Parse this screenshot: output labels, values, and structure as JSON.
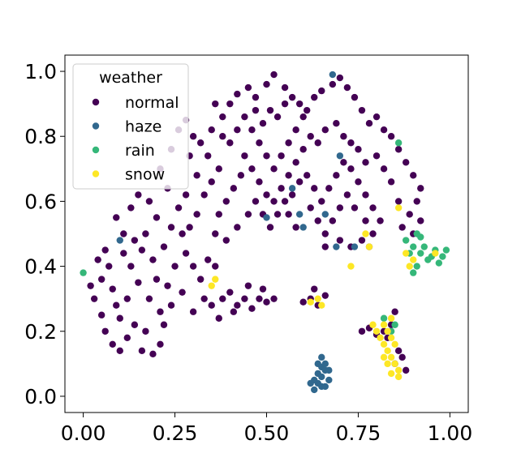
{
  "chart_data": {
    "type": "scatter",
    "xlim": [
      -0.05,
      1.05
    ],
    "ylim": [
      -0.05,
      1.05
    ],
    "xticks": [
      0.0,
      0.25,
      0.5,
      0.75,
      1.0
    ],
    "yticks": [
      0.0,
      0.2,
      0.4,
      0.6,
      0.8,
      1.0
    ],
    "xtick_labels": [
      "0.00",
      "0.25",
      "0.50",
      "0.75",
      "1.00"
    ],
    "ytick_labels": [
      "0.0",
      "0.2",
      "0.4",
      "0.6",
      "0.8",
      "1.0"
    ],
    "grid": false,
    "legend": {
      "title": "weather",
      "placement": "top-left",
      "entries": [
        "normal",
        "haze",
        "rain",
        "snow"
      ]
    },
    "colors": {
      "normal": "#440154",
      "haze": "#31688e",
      "rain": "#35b779",
      "snow": "#fde725"
    },
    "series": [
      {
        "name": "normal",
        "points": [
          [
            0.02,
            0.34
          ],
          [
            0.03,
            0.3
          ],
          [
            0.05,
            0.25
          ],
          [
            0.06,
            0.2
          ],
          [
            0.05,
            0.36
          ],
          [
            0.07,
            0.4
          ],
          [
            0.08,
            0.33
          ],
          [
            0.09,
            0.28
          ],
          [
            0.04,
            0.42
          ],
          [
            0.06,
            0.45
          ],
          [
            0.08,
            0.16
          ],
          [
            0.1,
            0.14
          ],
          [
            0.12,
            0.18
          ],
          [
            0.14,
            0.22
          ],
          [
            0.1,
            0.24
          ],
          [
            0.12,
            0.3
          ],
          [
            0.15,
            0.35
          ],
          [
            0.13,
            0.4
          ],
          [
            0.16,
            0.45
          ],
          [
            0.11,
            0.5
          ],
          [
            0.09,
            0.55
          ],
          [
            0.13,
            0.58
          ],
          [
            0.15,
            0.62
          ],
          [
            0.18,
            0.6
          ],
          [
            0.2,
            0.55
          ],
          [
            0.17,
            0.5
          ],
          [
            0.19,
            0.42
          ],
          [
            0.18,
            0.3
          ],
          [
            0.17,
            0.2
          ],
          [
            0.16,
            0.14
          ],
          [
            0.19,
            0.13
          ],
          [
            0.21,
            0.16
          ],
          [
            0.22,
            0.22
          ],
          [
            0.24,
            0.28
          ],
          [
            0.23,
            0.34
          ],
          [
            0.25,
            0.4
          ],
          [
            0.22,
            0.46
          ],
          [
            0.24,
            0.52
          ],
          [
            0.26,
            0.58
          ],
          [
            0.23,
            0.64
          ],
          [
            0.21,
            0.7
          ],
          [
            0.24,
            0.76
          ],
          [
            0.26,
            0.82
          ],
          [
            0.28,
            0.85
          ],
          [
            0.3,
            0.8
          ],
          [
            0.29,
            0.74
          ],
          [
            0.31,
            0.68
          ],
          [
            0.28,
            0.62
          ],
          [
            0.27,
            0.5
          ],
          [
            0.28,
            0.44
          ],
          [
            0.3,
            0.4
          ],
          [
            0.32,
            0.36
          ],
          [
            0.34,
            0.42
          ],
          [
            0.36,
            0.4
          ],
          [
            0.33,
            0.3
          ],
          [
            0.3,
            0.26
          ],
          [
            0.27,
            0.32
          ],
          [
            0.35,
            0.28
          ],
          [
            0.37,
            0.24
          ],
          [
            0.38,
            0.3
          ],
          [
            0.4,
            0.32
          ],
          [
            0.42,
            0.28
          ],
          [
            0.44,
            0.3
          ],
          [
            0.46,
            0.27
          ],
          [
            0.48,
            0.3
          ],
          [
            0.5,
            0.29
          ],
          [
            0.52,
            0.3
          ],
          [
            0.49,
            0.33
          ],
          [
            0.45,
            0.34
          ],
          [
            0.41,
            0.26
          ],
          [
            0.33,
            0.62
          ],
          [
            0.35,
            0.66
          ],
          [
            0.37,
            0.7
          ],
          [
            0.34,
            0.74
          ],
          [
            0.32,
            0.78
          ],
          [
            0.35,
            0.82
          ],
          [
            0.38,
            0.86
          ],
          [
            0.4,
            0.9
          ],
          [
            0.42,
            0.93
          ],
          [
            0.45,
            0.95
          ],
          [
            0.47,
            0.92
          ],
          [
            0.5,
            0.96
          ],
          [
            0.52,
            0.99
          ],
          [
            0.55,
            0.95
          ],
          [
            0.57,
            0.92
          ],
          [
            0.59,
            0.9
          ],
          [
            0.61,
            0.88
          ],
          [
            0.63,
            0.92
          ],
          [
            0.65,
            0.94
          ],
          [
            0.68,
            0.96
          ],
          [
            0.7,
            0.98
          ],
          [
            0.72,
            0.95
          ],
          [
            0.74,
            0.92
          ],
          [
            0.76,
            0.88
          ],
          [
            0.78,
            0.84
          ],
          [
            0.8,
            0.86
          ],
          [
            0.82,
            0.82
          ],
          [
            0.84,
            0.8
          ],
          [
            0.86,
            0.76
          ],
          [
            0.88,
            0.72
          ],
          [
            0.9,
            0.68
          ],
          [
            0.92,
            0.64
          ],
          [
            0.91,
            0.6
          ],
          [
            0.89,
            0.56
          ],
          [
            0.87,
            0.52
          ],
          [
            0.9,
            0.5
          ],
          [
            0.92,
            0.54
          ],
          [
            0.86,
            0.6
          ],
          [
            0.84,
            0.66
          ],
          [
            0.82,
            0.7
          ],
          [
            0.8,
            0.74
          ],
          [
            0.77,
            0.72
          ],
          [
            0.75,
            0.76
          ],
          [
            0.73,
            0.78
          ],
          [
            0.71,
            0.8
          ],
          [
            0.69,
            0.84
          ],
          [
            0.66,
            0.82
          ],
          [
            0.64,
            0.78
          ],
          [
            0.62,
            0.8
          ],
          [
            0.6,
            0.76
          ],
          [
            0.58,
            0.72
          ],
          [
            0.56,
            0.68
          ],
          [
            0.54,
            0.64
          ],
          [
            0.52,
            0.6
          ],
          [
            0.5,
            0.62
          ],
          [
            0.48,
            0.66
          ],
          [
            0.46,
            0.7
          ],
          [
            0.44,
            0.74
          ],
          [
            0.43,
            0.68
          ],
          [
            0.41,
            0.64
          ],
          [
            0.39,
            0.6
          ],
          [
            0.37,
            0.56
          ],
          [
            0.36,
            0.5
          ],
          [
            0.39,
            0.48
          ],
          [
            0.42,
            0.52
          ],
          [
            0.45,
            0.56
          ],
          [
            0.47,
            0.6
          ],
          [
            0.49,
            0.56
          ],
          [
            0.51,
            0.52
          ],
          [
            0.53,
            0.56
          ],
          [
            0.55,
            0.6
          ],
          [
            0.57,
            0.62
          ],
          [
            0.59,
            0.66
          ],
          [
            0.61,
            0.68
          ],
          [
            0.63,
            0.64
          ],
          [
            0.65,
            0.6
          ],
          [
            0.67,
            0.64
          ],
          [
            0.69,
            0.68
          ],
          [
            0.71,
            0.72
          ],
          [
            0.73,
            0.7
          ],
          [
            0.75,
            0.66
          ],
          [
            0.77,
            0.62
          ],
          [
            0.79,
            0.58
          ],
          [
            0.81,
            0.54
          ],
          [
            0.79,
            0.5
          ],
          [
            0.77,
            0.54
          ],
          [
            0.74,
            0.58
          ],
          [
            0.72,
            0.62
          ],
          [
            0.7,
            0.58
          ],
          [
            0.68,
            0.54
          ],
          [
            0.66,
            0.5
          ],
          [
            0.64,
            0.54
          ],
          [
            0.62,
            0.58
          ],
          [
            0.66,
            0.46
          ],
          [
            0.7,
            0.48
          ],
          [
            0.73,
            0.46
          ],
          [
            0.76,
            0.48
          ],
          [
            0.78,
            0.46
          ],
          [
            0.58,
            0.52
          ],
          [
            0.56,
            0.56
          ],
          [
            0.4,
            0.78
          ],
          [
            0.42,
            0.82
          ],
          [
            0.44,
            0.86
          ],
          [
            0.46,
            0.82
          ],
          [
            0.48,
            0.78
          ],
          [
            0.5,
            0.74
          ],
          [
            0.52,
            0.7
          ],
          [
            0.54,
            0.74
          ],
          [
            0.56,
            0.78
          ],
          [
            0.58,
            0.82
          ],
          [
            0.6,
            0.86
          ],
          [
            0.53,
            0.86
          ],
          [
            0.55,
            0.9
          ],
          [
            0.51,
            0.88
          ],
          [
            0.49,
            0.84
          ],
          [
            0.47,
            0.88
          ],
          [
            0.36,
            0.9
          ],
          [
            0.38,
            0.8
          ],
          [
            0.31,
            0.56
          ],
          [
            0.29,
            0.52
          ],
          [
            0.62,
            0.3
          ],
          [
            0.64,
            0.28
          ],
          [
            0.66,
            0.31
          ],
          [
            0.63,
            0.33
          ],
          [
            0.6,
            0.29
          ],
          [
            0.85,
            0.26
          ],
          [
            0.84,
            0.22
          ],
          [
            0.83,
            0.18
          ],
          [
            0.86,
            0.14
          ],
          [
            0.85,
            0.1
          ],
          [
            0.88,
            0.08
          ],
          [
            0.82,
            0.2
          ],
          [
            0.8,
            0.19
          ],
          [
            0.78,
            0.21
          ],
          [
            0.76,
            0.2
          ],
          [
            0.87,
            0.12
          ],
          [
            0.11,
            0.44
          ],
          [
            0.14,
            0.48
          ],
          [
            0.2,
            0.36
          ],
          [
            0.21,
            0.26
          ]
        ]
      },
      {
        "name": "haze",
        "points": [
          [
            0.63,
            0.02
          ],
          [
            0.64,
            0.04
          ],
          [
            0.65,
            0.06
          ],
          [
            0.66,
            0.03
          ],
          [
            0.64,
            0.07
          ],
          [
            0.65,
            0.09
          ],
          [
            0.66,
            0.08
          ],
          [
            0.67,
            0.05
          ],
          [
            0.63,
            0.05
          ],
          [
            0.65,
            0.03
          ],
          [
            0.64,
            0.1
          ],
          [
            0.66,
            0.1
          ],
          [
            0.62,
            0.04
          ],
          [
            0.67,
            0.08
          ],
          [
            0.65,
            0.12
          ],
          [
            0.68,
            0.99
          ],
          [
            0.59,
            0.56
          ],
          [
            0.6,
            0.52
          ],
          [
            0.66,
            0.56
          ],
          [
            0.69,
            0.46
          ],
          [
            0.74,
            0.46
          ],
          [
            0.57,
            0.64
          ],
          [
            0.5,
            0.55
          ],
          [
            0.1,
            0.48
          ],
          [
            0.7,
            0.74
          ]
        ]
      },
      {
        "name": "rain",
        "points": [
          [
            0.9,
            0.46
          ],
          [
            0.92,
            0.44
          ],
          [
            0.94,
            0.42
          ],
          [
            0.96,
            0.45
          ],
          [
            0.98,
            0.43
          ],
          [
            0.99,
            0.45
          ],
          [
            0.97,
            0.41
          ],
          [
            0.95,
            0.43
          ],
          [
            0.93,
            0.46
          ],
          [
            0.91,
            0.4
          ],
          [
            0.9,
            0.38
          ],
          [
            0.92,
            0.49
          ],
          [
            0.88,
            0.48
          ],
          [
            0.89,
            0.44
          ],
          [
            0.91,
            0.5
          ],
          [
            0.0,
            0.38
          ],
          [
            0.85,
            0.22
          ],
          [
            0.84,
            0.2
          ],
          [
            0.86,
            0.78
          ],
          [
            0.82,
            0.24
          ]
        ]
      },
      {
        "name": "snow",
        "points": [
          [
            0.82,
            0.22
          ],
          [
            0.83,
            0.2
          ],
          [
            0.84,
            0.18
          ],
          [
            0.82,
            0.16
          ],
          [
            0.83,
            0.14
          ],
          [
            0.84,
            0.12
          ],
          [
            0.85,
            0.1
          ],
          [
            0.86,
            0.08
          ],
          [
            0.84,
            0.07
          ],
          [
            0.83,
            0.1
          ],
          [
            0.82,
            0.12
          ],
          [
            0.81,
            0.18
          ],
          [
            0.8,
            0.2
          ],
          [
            0.79,
            0.22
          ],
          [
            0.84,
            0.24
          ],
          [
            0.85,
            0.16
          ],
          [
            0.86,
            0.06
          ],
          [
            0.89,
            0.4
          ],
          [
            0.9,
            0.42
          ],
          [
            0.88,
            0.44
          ],
          [
            0.96,
            0.44
          ],
          [
            0.64,
            0.3
          ],
          [
            0.62,
            0.29
          ],
          [
            0.65,
            0.28
          ],
          [
            0.78,
            0.46
          ],
          [
            0.77,
            0.5
          ],
          [
            0.35,
            0.34
          ],
          [
            0.36,
            0.36
          ],
          [
            0.73,
            0.4
          ],
          [
            0.86,
            0.58
          ]
        ]
      }
    ]
  }
}
